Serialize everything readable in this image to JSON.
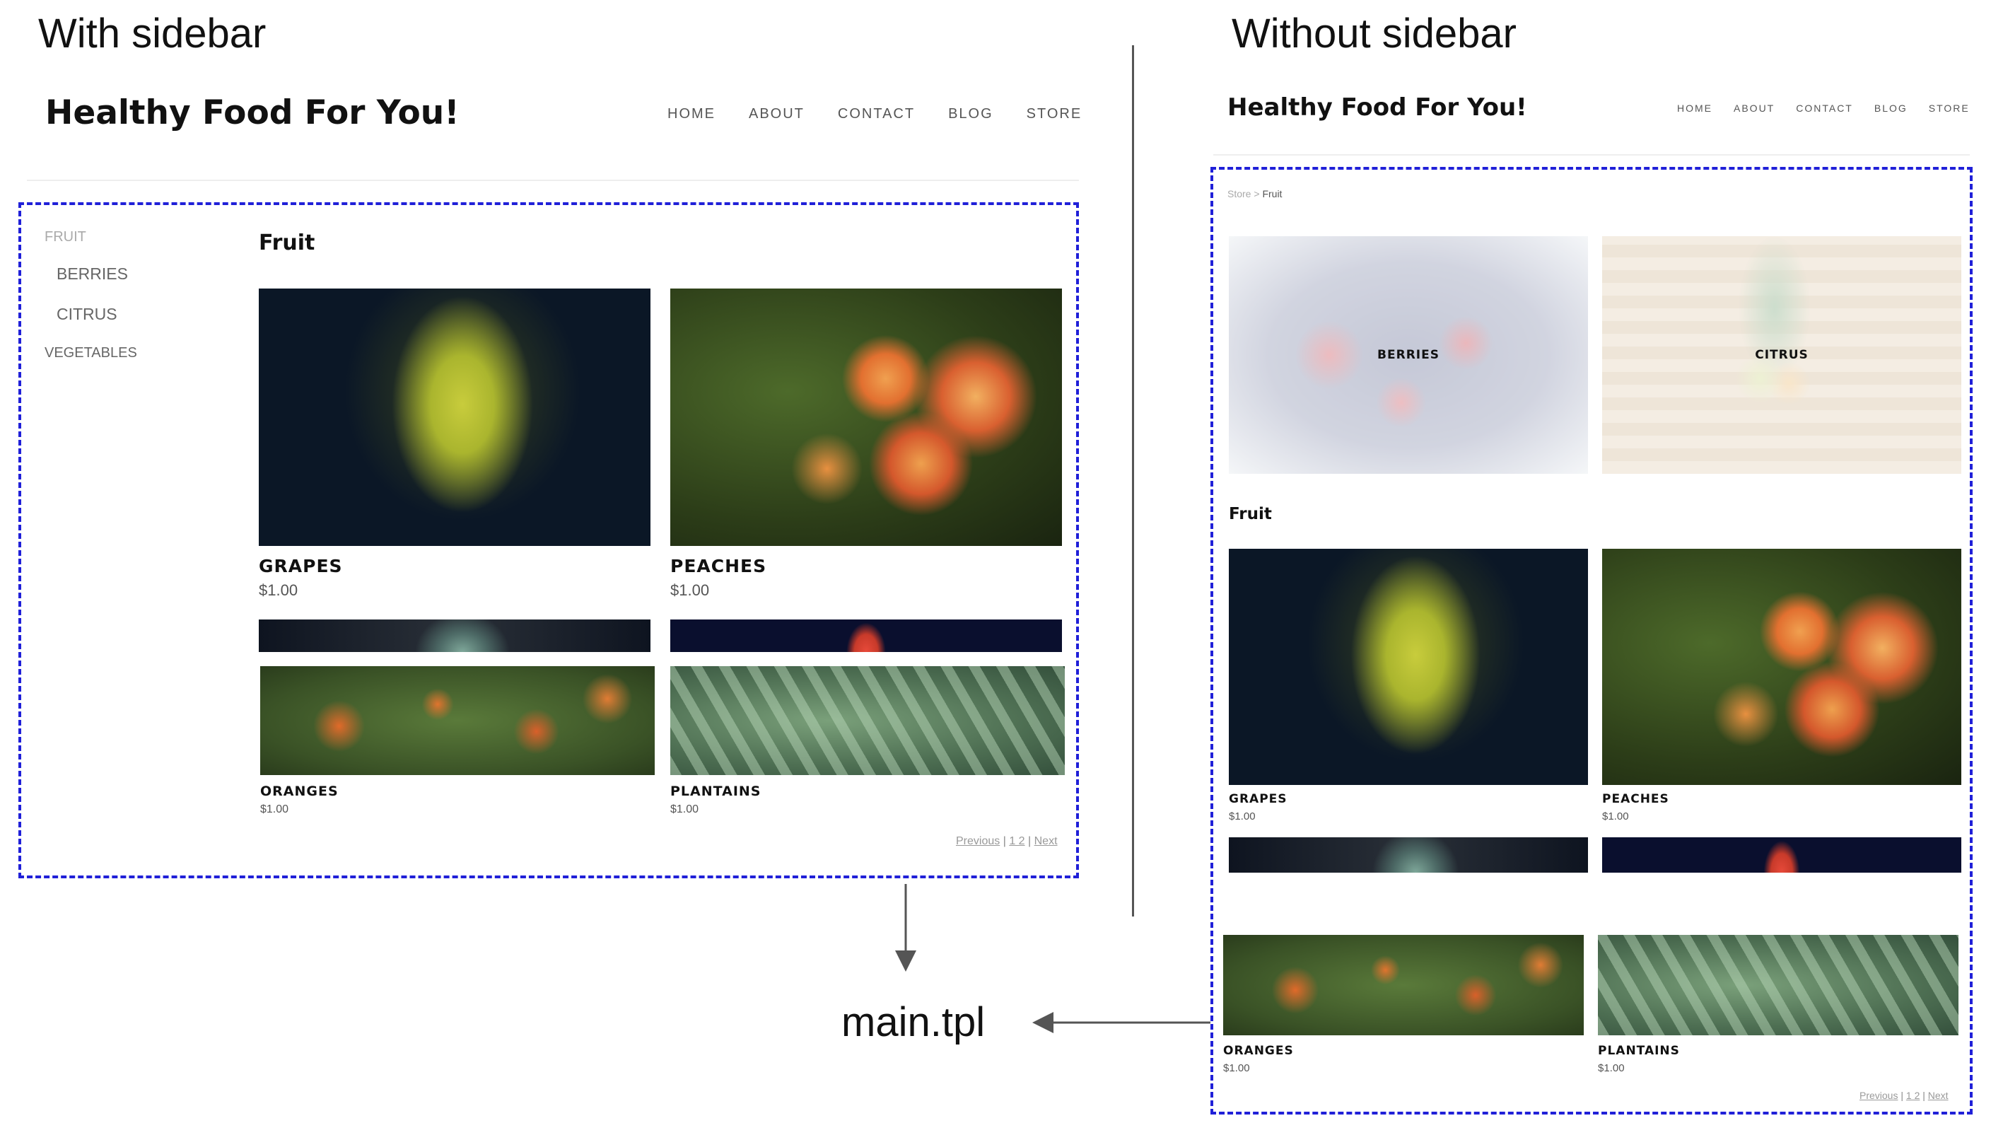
{
  "panels": {
    "left_title": "With sidebar",
    "right_title": "Without sidebar"
  },
  "template_label": "main.tpl",
  "site": {
    "title": "Healthy Food For You!",
    "nav": [
      "HOME",
      "ABOUT",
      "CONTACT",
      "BLOG",
      "STORE"
    ]
  },
  "left": {
    "sidebar": {
      "heading": "FRUIT",
      "items": [
        "BERRIES",
        "CITRUS"
      ],
      "other": "VEGETABLES"
    },
    "section_title": "Fruit",
    "products": [
      {
        "name": "GRAPES",
        "price": "$1.00"
      },
      {
        "name": "PEACHES",
        "price": "$1.00"
      },
      {
        "name": "ORANGES",
        "price": "$1.00"
      },
      {
        "name": "PLANTAINS",
        "price": "$1.00"
      }
    ],
    "pager": {
      "previous": "Previous",
      "sep1": "|",
      "pages": "1 2",
      "sep2": "|",
      "next": "Next"
    }
  },
  "right": {
    "breadcrumb": {
      "root": "Store",
      "sep": ">",
      "current": "Fruit"
    },
    "categories": [
      "BERRIES",
      "CITRUS"
    ],
    "section_title": "Fruit",
    "products": [
      {
        "name": "GRAPES",
        "price": "$1.00"
      },
      {
        "name": "PEACHES",
        "price": "$1.00"
      },
      {
        "name": "ORANGES",
        "price": "$1.00"
      },
      {
        "name": "PLANTAINS",
        "price": "$1.00"
      }
    ],
    "pager": {
      "previous": "Previous",
      "sep1": "|",
      "pages": "1 2",
      "sep2": "|",
      "next": "Next"
    }
  },
  "colors": {
    "dashed_border": "#2020d8",
    "connector": "#555555"
  }
}
